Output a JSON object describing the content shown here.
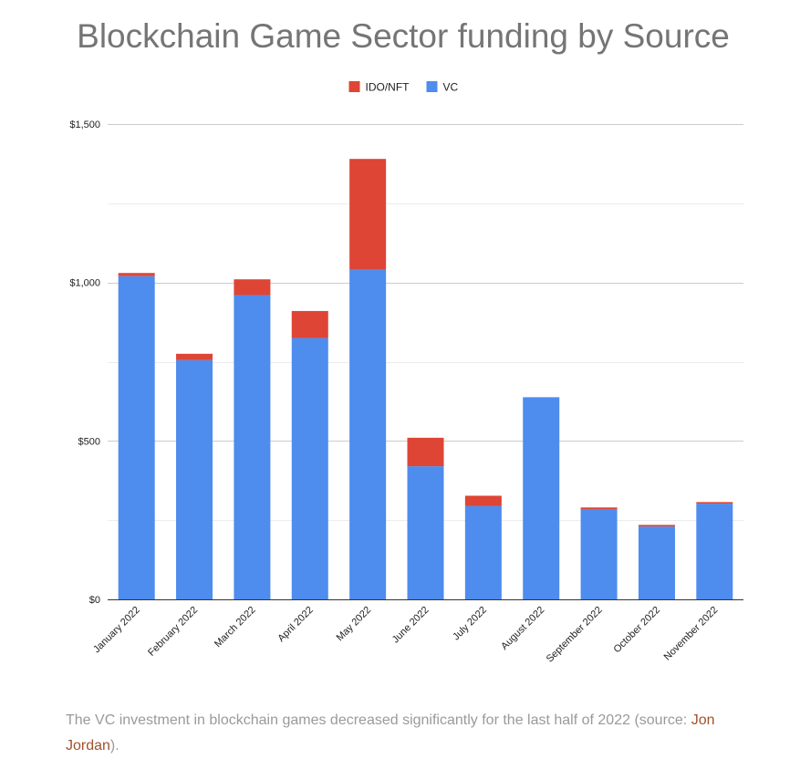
{
  "chart_data": {
    "type": "bar",
    "stacked": true,
    "title": "Blockchain Game Sector funding by Source",
    "xlabel": "",
    "ylabel": "",
    "categories": [
      "January 2022",
      "February 2022",
      "March 2022",
      "April 2022",
      "May 2022",
      "June 2022",
      "July 2022",
      "August 2022",
      "September 2022",
      "October 2022",
      "November 2022"
    ],
    "series": [
      {
        "name": "VC",
        "color": "#4e8cee",
        "values": [
          1020,
          755,
          960,
          825,
          1040,
          420,
          295,
          638,
          285,
          230,
          302
        ]
      },
      {
        "name": "IDO/NFT",
        "color": "#de4535",
        "values": [
          10,
          20,
          50,
          85,
          350,
          90,
          32,
          0,
          5,
          5,
          5
        ]
      }
    ],
    "legend": {
      "position": "top",
      "order": [
        "IDO/NFT",
        "VC"
      ]
    },
    "ylim": [
      0,
      1500
    ],
    "yticks": [
      "$0",
      "$500",
      "$1,000",
      "$1,500"
    ],
    "ytick_values": [
      0,
      500,
      1000,
      1500
    ],
    "grid": true
  },
  "caption": {
    "text": "The VC investment in blockchain games decreased significantly for the last half of 2022 (source: ",
    "link_text": "Jon Jordan",
    "suffix": ")."
  }
}
